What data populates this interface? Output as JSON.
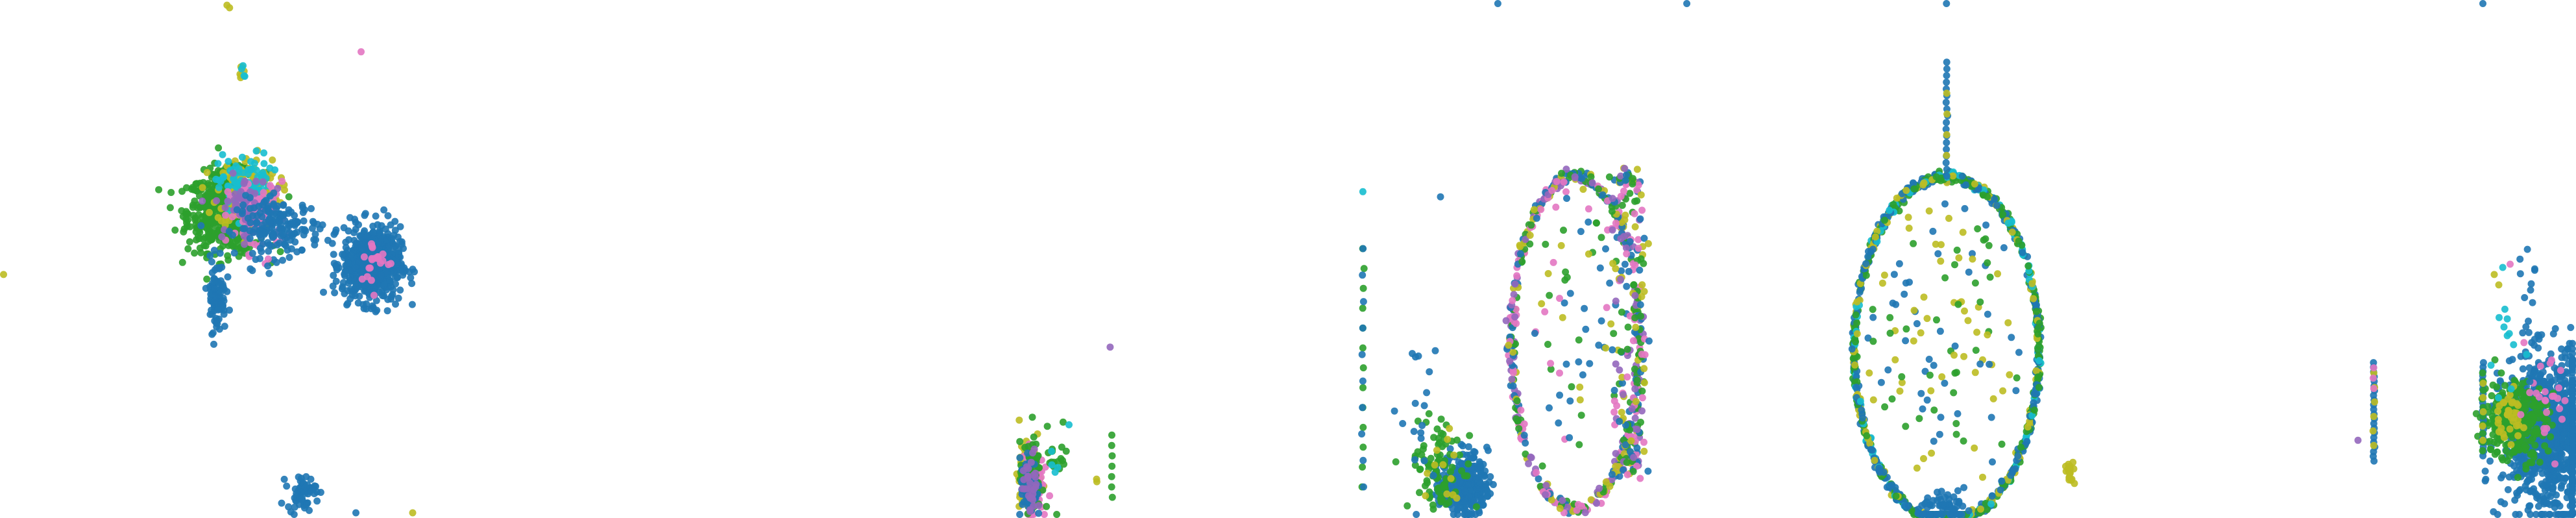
{
  "palette": {
    "blue": "#1f77b4",
    "green": "#2ca02c",
    "olive": "#bcbd22",
    "cyan": "#17becf",
    "pink": "#e377c2",
    "purple": "#9467bd"
  },
  "chart_data": [
    {
      "type": "scatter",
      "panel": 1,
      "grid": false,
      "legend": "none",
      "xlim": [
        0,
        1000
      ],
      "ylim": [
        0,
        1000
      ],
      "clusters": [
        {
          "color": "green",
          "cx": 440,
          "cy": 590,
          "sx": 38,
          "sy": 38,
          "n": 620
        },
        {
          "color": "olive",
          "cx": 480,
          "cy": 630,
          "sx": 30,
          "sy": 34,
          "n": 150
        },
        {
          "color": "cyan",
          "cx": 475,
          "cy": 640,
          "sx": 26,
          "sy": 32,
          "n": 90
        },
        {
          "color": "pink",
          "cx": 500,
          "cy": 580,
          "sx": 28,
          "sy": 34,
          "n": 90
        },
        {
          "color": "purple",
          "cx": 470,
          "cy": 600,
          "sx": 26,
          "sy": 30,
          "n": 50
        },
        {
          "color": "blue",
          "cx": 540,
          "cy": 560,
          "sx": 40,
          "sy": 28,
          "n": 170
        },
        {
          "color": "blue",
          "cx": 720,
          "cy": 490,
          "sx": 28,
          "sy": 36,
          "n": 650
        },
        {
          "color": "pink",
          "cx": 730,
          "cy": 495,
          "sx": 16,
          "sy": 22,
          "n": 20
        },
        {
          "color": "blue",
          "cx": 420,
          "cy": 430,
          "sx": 9,
          "sy": 35,
          "n": 90
        },
        {
          "color": "blue",
          "cx": 585,
          "cy": 50,
          "sx": 14,
          "sy": 16,
          "n": 60
        },
        {
          "color": "olive",
          "cx": 470,
          "cy": 860,
          "sx": 4,
          "sy": 8,
          "n": 6
        },
        {
          "color": "cyan",
          "cx": 470,
          "cy": 860,
          "sx": 4,
          "sy": 8,
          "n": 4
        }
      ],
      "points": [
        {
          "x": 700,
          "y": 900,
          "color": "pink"
        },
        {
          "x": 440,
          "y": 990,
          "color": "olive"
        },
        {
          "x": 445,
          "y": 985,
          "color": "olive"
        },
        {
          "x": 5,
          "y": 470,
          "color": "olive"
        },
        {
          "x": 690,
          "y": 10,
          "color": "blue"
        },
        {
          "x": 800,
          "y": 10,
          "color": "olive"
        },
        {
          "x": 725,
          "y": 430,
          "color": "pink"
        },
        {
          "x": 520,
          "y": 500,
          "color": "pink"
        }
      ]
    },
    {
      "type": "scatter",
      "panel": 2,
      "grid": false,
      "legend": "none",
      "xlim": [
        0,
        1000
      ],
      "ylim": [
        0,
        1000
      ],
      "clusters": [
        {
          "color": "olive",
          "cx": 65,
          "cy": 75,
          "sx": 24,
          "sy": 32,
          "n": 160
        },
        {
          "color": "pink",
          "cx": 80,
          "cy": 75,
          "sx": 24,
          "sy": 32,
          "n": 110
        },
        {
          "color": "green",
          "cx": 70,
          "cy": 80,
          "sx": 24,
          "sy": 32,
          "n": 80
        },
        {
          "color": "blue",
          "cx": 60,
          "cy": 60,
          "sx": 20,
          "sy": 30,
          "n": 50
        },
        {
          "color": "purple",
          "cx": 75,
          "cy": 70,
          "sx": 20,
          "sy": 28,
          "n": 30
        },
        {
          "color": "green",
          "cx": 190,
          "cy": 110,
          "sx": 30,
          "sy": 45,
          "n": 18
        },
        {
          "color": "cyan",
          "cx": 200,
          "cy": 140,
          "sx": 25,
          "sy": 35,
          "n": 4
        }
      ],
      "lines": [
        {
          "color": "green",
          "x": 450,
          "y0": 40,
          "y1": 160,
          "n": 7
        },
        {
          "color": "purple",
          "x": 440,
          "y0": 330,
          "y1": 335,
          "n": 1
        },
        {
          "color": "olive",
          "x": 380,
          "y0": 70,
          "y1": 75,
          "n": 2
        }
      ],
      "points": [
        {
          "x": 250,
          "y": 180,
          "color": "cyan"
        },
        {
          "x": 20,
          "y": 5,
          "color": "blue"
        }
      ]
    },
    {
      "type": "scatter",
      "panel": 3,
      "grid": false,
      "legend": "none",
      "xlim": [
        0,
        1000
      ],
      "ylim": [
        0,
        1000
      ],
      "lines": [
        {
          "color": "green",
          "x": 20,
          "y0": 60,
          "y1": 520,
          "n": 13
        },
        {
          "color": "blue",
          "x": 20,
          "y0": 60,
          "y1": 520,
          "n": 10
        }
      ],
      "clusters": [
        {
          "color": "blue",
          "cx": 320,
          "cy": 65,
          "sx": 35,
          "sy": 30,
          "n": 320
        },
        {
          "color": "green",
          "cx": 250,
          "cy": 100,
          "sx": 45,
          "sy": 45,
          "n": 90
        },
        {
          "color": "olive",
          "cx": 240,
          "cy": 90,
          "sx": 30,
          "sy": 40,
          "n": 12
        },
        {
          "color": "blue",
          "cx": 190,
          "cy": 190,
          "sx": 40,
          "sy": 100,
          "n": 18
        }
      ],
      "ellipses": [
        {
          "cx": 650,
          "cy": 340,
          "rx": 190,
          "ry": 320,
          "n": 460,
          "jitter": 6,
          "colors": [
            "green",
            "pink",
            "olive",
            "blue",
            "purple"
          ]
        },
        {
          "cx": 810,
          "cy": 380,
          "rx": 30,
          "ry": 280,
          "n": 200,
          "jitter": 16,
          "colors": [
            "green",
            "pink",
            "olive",
            "purple",
            "blue"
          ]
        }
      ],
      "interior": {
        "cx": 670,
        "cy": 380,
        "rx": 150,
        "ry": 270,
        "n": 70,
        "colors": [
          "green",
          "blue",
          "olive",
          "pink"
        ]
      },
      "points": [
        {
          "x": 20,
          "y": 630,
          "color": "cyan"
        },
        {
          "x": 250,
          "y": 620,
          "color": "blue"
        },
        {
          "x": 420,
          "y": 995,
          "color": "blue"
        },
        {
          "x": 980,
          "y": 995,
          "color": "blue"
        }
      ]
    },
    {
      "type": "scatter",
      "panel": 4,
      "grid": false,
      "legend": "none",
      "xlim": [
        0,
        1000
      ],
      "ylim": [
        0,
        1000
      ],
      "ellipses": [
        {
          "cx": 430,
          "cy": 325,
          "rx": 395,
          "ry": 335,
          "n": 900,
          "jitter": 5,
          "colors": [
            "blue",
            "blue",
            "green",
            "olive",
            "cyan",
            "green"
          ]
        }
      ],
      "interior": {
        "cx": 430,
        "cy": 330,
        "rx": 340,
        "ry": 290,
        "n": 130,
        "colors": [
          "blue",
          "green",
          "olive"
        ]
      },
      "lines": [
        {
          "color": "blue",
          "x": 430,
          "y0": 660,
          "y1": 880,
          "n": 18
        },
        {
          "color": "olive",
          "x": 430,
          "y0": 700,
          "y1": 820,
          "n": 4
        }
      ],
      "clusters": [
        {
          "color": "blue",
          "cx": 430,
          "cy": 20,
          "sx": 60,
          "sy": 12,
          "n": 60
        },
        {
          "color": "olive",
          "cx": 960,
          "cy": 85,
          "sx": 12,
          "sy": 15,
          "n": 18
        }
      ],
      "points": [
        {
          "x": 430,
          "y": 995,
          "color": "blue"
        }
      ]
    },
    {
      "type": "scatter",
      "panel": 5,
      "grid": false,
      "legend": "none",
      "xlim": [
        0,
        1000
      ],
      "ylim": [
        0,
        1000
      ],
      "lines": [
        {
          "color": "blue",
          "x": 110,
          "y0": 110,
          "y1": 300,
          "n": 22
        },
        {
          "color": "olive",
          "x": 110,
          "y0": 140,
          "y1": 280,
          "n": 6
        },
        {
          "color": "pink",
          "x": 110,
          "y0": 250,
          "y1": 290,
          "n": 3
        },
        {
          "color": "blue",
          "x": 590,
          "y0": 120,
          "y1": 300,
          "n": 22
        },
        {
          "color": "green",
          "x": 590,
          "y0": 130,
          "y1": 280,
          "n": 10
        },
        {
          "color": "olive",
          "x": 590,
          "y0": 150,
          "y1": 260,
          "n": 5
        }
      ],
      "clusters": [
        {
          "color": "blue",
          "cx": 890,
          "cy": 160,
          "sx": 105,
          "sy": 75,
          "n": 900
        },
        {
          "color": "green",
          "cx": 730,
          "cy": 190,
          "sx": 70,
          "sy": 38,
          "n": 300
        },
        {
          "color": "olive",
          "cx": 700,
          "cy": 200,
          "sx": 35,
          "sy": 25,
          "n": 35
        },
        {
          "color": "pink",
          "cx": 860,
          "cy": 210,
          "sx": 60,
          "sy": 45,
          "n": 25
        },
        {
          "color": "cyan",
          "cx": 700,
          "cy": 330,
          "sx": 40,
          "sy": 55,
          "n": 12
        },
        {
          "color": "blue",
          "cx": 780,
          "cy": 370,
          "sx": 30,
          "sy": 80,
          "n": 18
        }
      ],
      "points": [
        {
          "x": 40,
          "y": 150,
          "color": "purple"
        },
        {
          "x": 640,
          "y": 470,
          "color": "olive"
        },
        {
          "x": 660,
          "y": 450,
          "color": "olive"
        },
        {
          "x": 590,
          "y": 995,
          "color": "blue"
        },
        {
          "x": 800,
          "y": 440,
          "color": "blue"
        },
        {
          "x": 710,
          "y": 490,
          "color": "pink"
        }
      ]
    }
  ]
}
